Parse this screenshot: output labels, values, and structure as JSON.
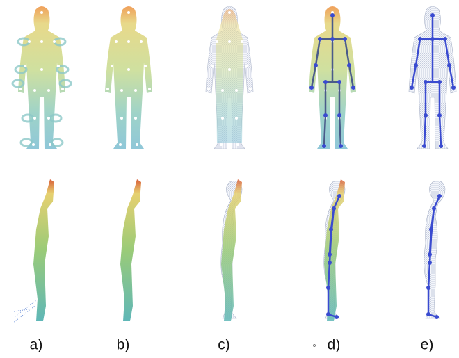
{
  "labels": [
    "a)",
    "b)",
    "c)",
    "d)",
    "e)"
  ]
}
